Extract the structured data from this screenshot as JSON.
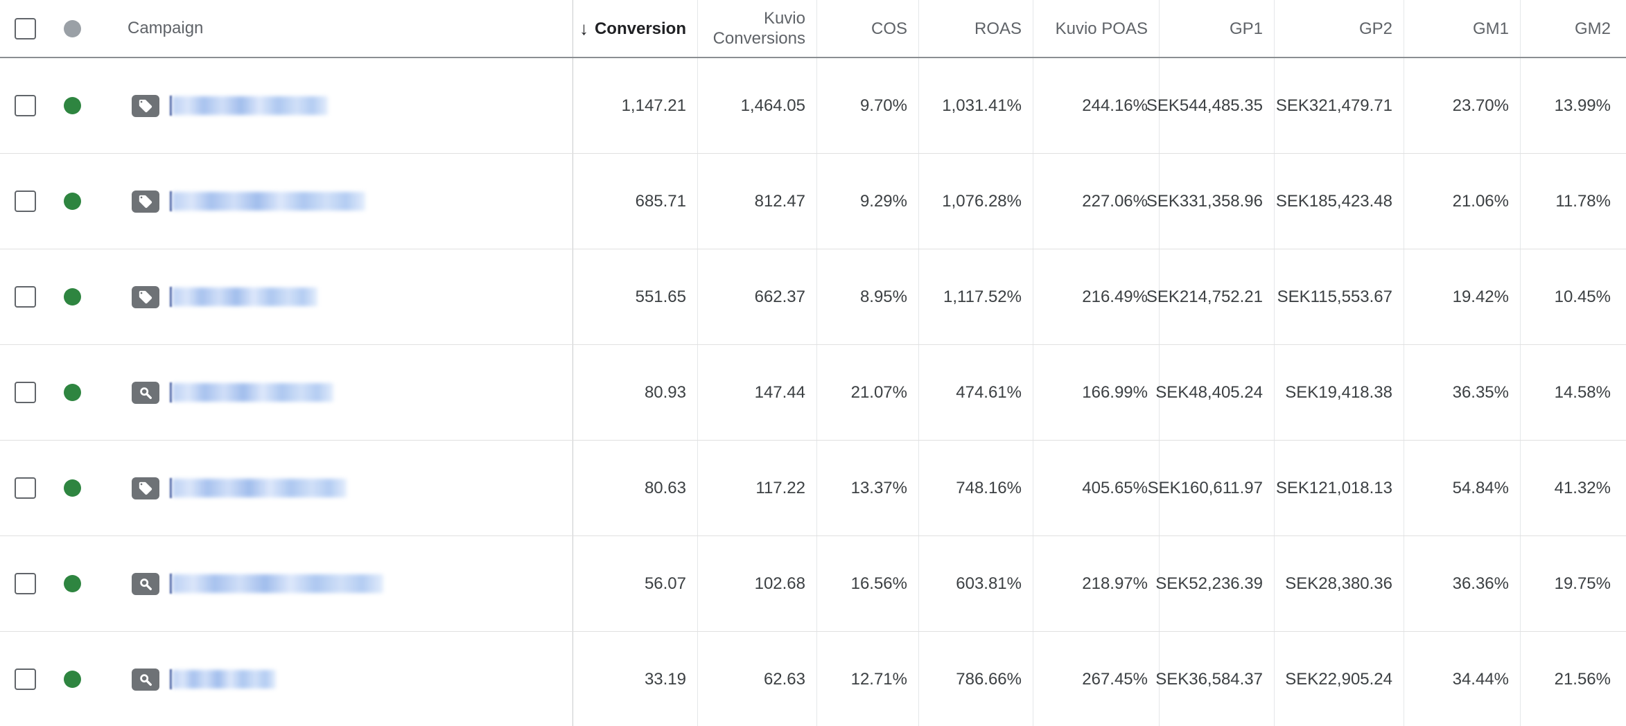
{
  "table": {
    "sort": {
      "column": "conversion",
      "direction": "descending",
      "arrow_glyph": "↓"
    },
    "columns": [
      {
        "id": "campaign",
        "label": "Campaign",
        "align": "left"
      },
      {
        "id": "conversion",
        "label": "Conversion",
        "sorted": true
      },
      {
        "id": "kuvio_conversions",
        "label": "Kuvio Conversions"
      },
      {
        "id": "cos",
        "label": "COS"
      },
      {
        "id": "roas",
        "label": "ROAS"
      },
      {
        "id": "kuvio_poas",
        "label": "Kuvio POAS"
      },
      {
        "id": "gp1",
        "label": "GP1"
      },
      {
        "id": "gp2",
        "label": "GP2"
      },
      {
        "id": "gm1",
        "label": "GM1"
      },
      {
        "id": "gm2",
        "label": "GM2"
      }
    ],
    "header": {
      "select_all_checked": false,
      "status_column_icon": "gray-dot"
    },
    "rows": [
      {
        "status": "enabled",
        "campaign_icon": "shopping-tag-icon",
        "name_redacted_width": 224,
        "values": {
          "conversion": "1,147.21",
          "kuvio_conversions": "1,464.05",
          "cos": "9.70%",
          "roas": "1,031.41%",
          "kuvio_poas": "244.16%",
          "gp1": "SEK544,485.35",
          "gp2": "SEK321,479.71",
          "gm1": "23.70%",
          "gm2": "13.99%"
        }
      },
      {
        "status": "enabled",
        "campaign_icon": "shopping-tag-icon",
        "name_redacted_width": 278,
        "values": {
          "conversion": "685.71",
          "kuvio_conversions": "812.47",
          "cos": "9.29%",
          "roas": "1,076.28%",
          "kuvio_poas": "227.06%",
          "gp1": "SEK331,358.96",
          "gp2": "SEK185,423.48",
          "gm1": "21.06%",
          "gm2": "11.78%"
        }
      },
      {
        "status": "enabled",
        "campaign_icon": "shopping-tag-icon",
        "name_redacted_width": 209,
        "values": {
          "conversion": "551.65",
          "kuvio_conversions": "662.37",
          "cos": "8.95%",
          "roas": "1,117.52%",
          "kuvio_poas": "216.49%",
          "gp1": "SEK214,752.21",
          "gp2": "SEK115,553.67",
          "gm1": "19.42%",
          "gm2": "10.45%"
        }
      },
      {
        "status": "enabled",
        "campaign_icon": "search-icon",
        "name_redacted_width": 232,
        "values": {
          "conversion": "80.93",
          "kuvio_conversions": "147.44",
          "cos": "21.07%",
          "roas": "474.61%",
          "kuvio_poas": "166.99%",
          "gp1": "SEK48,405.24",
          "gp2": "SEK19,418.38",
          "gm1": "36.35%",
          "gm2": "14.58%"
        }
      },
      {
        "status": "enabled",
        "campaign_icon": "shopping-tag-icon",
        "name_redacted_width": 251,
        "values": {
          "conversion": "80.63",
          "kuvio_conversions": "117.22",
          "cos": "13.37%",
          "roas": "748.16%",
          "kuvio_poas": "405.65%",
          "gp1": "SEK160,611.97",
          "gp2": "SEK121,018.13",
          "gm1": "54.84%",
          "gm2": "41.32%"
        }
      },
      {
        "status": "enabled",
        "campaign_icon": "search-icon",
        "name_redacted_width": 304,
        "values": {
          "conversion": "56.07",
          "kuvio_conversions": "102.68",
          "cos": "16.56%",
          "roas": "603.81%",
          "kuvio_poas": "218.97%",
          "gp1": "SEK52,236.39",
          "gp2": "SEK28,380.36",
          "gm1": "36.36%",
          "gm2": "19.75%"
        }
      },
      {
        "status": "enabled",
        "campaign_icon": "search-icon",
        "name_redacted_width": 149,
        "values": {
          "conversion": "33.19",
          "kuvio_conversions": "62.63",
          "cos": "12.71%",
          "roas": "786.66%",
          "kuvio_poas": "267.45%",
          "gp1": "SEK36,584.37",
          "gp2": "SEK22,905.24",
          "gm1": "34.44%",
          "gm2": "21.56%"
        }
      }
    ]
  },
  "colors": {
    "status_enabled_green": "#2e8540",
    "status_header_gray": "#9aa0a6",
    "campaign_icon_chip_gray": "#6e7276",
    "redacted_name_blue": "#a9c4ef",
    "header_text": "#5f6368",
    "sorted_header_text": "#202124",
    "value_text": "#3c4043",
    "row_border": "#e0e0e0",
    "frozen_column_divider": "#c9cbcd",
    "header_underline": "#8a8e92"
  }
}
